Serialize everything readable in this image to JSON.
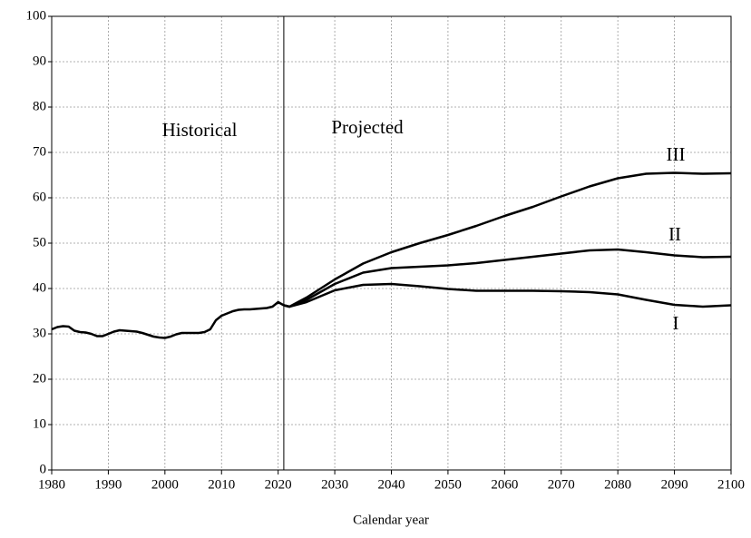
{
  "chart_data": {
    "type": "line",
    "x_label": "Calendar year",
    "xlim": [
      1980,
      2100
    ],
    "xticks": [
      1980,
      1990,
      2000,
      2010,
      2020,
      2030,
      2040,
      2050,
      2060,
      2070,
      2080,
      2090,
      2100
    ],
    "ylim": [
      0,
      100
    ],
    "yticks": [
      0,
      10,
      20,
      30,
      40,
      50,
      60,
      70,
      80,
      90,
      100
    ],
    "grid": true,
    "divider_x": 2021,
    "annotations": [
      "Historical",
      "Projected"
    ],
    "series": [
      {
        "color": "#000000",
        "x": [
          1980,
          1981,
          1982,
          1983,
          1984,
          1985,
          1986,
          1987,
          1988,
          1989,
          1990,
          1991,
          1992,
          1993,
          1994,
          1995,
          1996,
          1997,
          1998,
          1999,
          2000,
          2001,
          2002,
          2003,
          2004,
          2005,
          2006,
          2007,
          2008,
          2009,
          2010,
          2011,
          2012,
          2013,
          2014,
          2015,
          2016,
          2017,
          2018,
          2019,
          2020,
          2021
        ],
        "values": [
          31,
          31.5,
          31.7,
          31.6,
          30.7,
          30.4,
          30.3,
          30,
          29.5,
          29.5,
          30,
          30.5,
          30.8,
          30.7,
          30.6,
          30.5,
          30.2,
          29.8,
          29.4,
          29.2,
          29.1,
          29.4,
          29.9,
          30.2,
          30.2,
          30.2,
          30.2,
          30.4,
          31,
          33,
          34,
          34.5,
          35,
          35.3,
          35.4,
          35.4,
          35.5,
          35.6,
          35.7,
          36,
          37,
          36.3
        ]
      },
      {
        "name": "III",
        "color": "#000000",
        "x": [
          2021,
          2022,
          2025,
          2030,
          2035,
          2040,
          2045,
          2050,
          2055,
          2060,
          2065,
          2070,
          2075,
          2080,
          2085,
          2090,
          2095,
          2100
        ],
        "values": [
          36.3,
          36,
          38,
          42,
          45.5,
          48,
          50,
          51.8,
          53.8,
          56,
          58,
          60.3,
          62.5,
          64.3,
          65.3,
          65.5,
          65.3,
          65.4
        ]
      },
      {
        "name": "II",
        "color": "#000000",
        "x": [
          2021,
          2022,
          2025,
          2030,
          2035,
          2040,
          2045,
          2050,
          2055,
          2060,
          2065,
          2070,
          2075,
          2080,
          2085,
          2090,
          2095,
          2100
        ],
        "values": [
          36.3,
          36,
          37.5,
          41,
          43.5,
          44.5,
          44.8,
          45.1,
          45.6,
          46.3,
          47,
          47.7,
          48.4,
          48.6,
          48,
          47.3,
          46.9,
          47
        ]
      },
      {
        "name": "I",
        "color": "#000000",
        "x": [
          2021,
          2022,
          2025,
          2030,
          2035,
          2040,
          2045,
          2050,
          2055,
          2060,
          2065,
          2070,
          2075,
          2080,
          2085,
          2090,
          2095,
          2100
        ],
        "values": [
          36.3,
          36,
          37,
          39.6,
          40.8,
          41,
          40.5,
          39.9,
          39.5,
          39.5,
          39.5,
          39.4,
          39.2,
          38.7,
          37.5,
          36.4,
          36,
          36.3
        ]
      }
    ]
  }
}
